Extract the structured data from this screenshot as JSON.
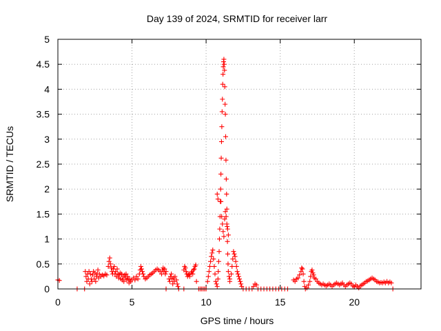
{
  "chart_data": {
    "type": "scatter",
    "title": "Day 139 of 2024, SRMTID for receiver larr",
    "xlabel": "GPS time / hours",
    "ylabel": "SRMTID / TECUs",
    "xlim": [
      0,
      24.5
    ],
    "ylim": [
      0,
      5
    ],
    "xticks": [
      0,
      5,
      10,
      15,
      20
    ],
    "xtick_labels": [
      "0",
      "5",
      "10",
      "15",
      "20"
    ],
    "yticks": [
      0,
      0.5,
      1,
      1.5,
      2,
      2.5,
      3,
      3.5,
      4,
      4.5,
      5
    ],
    "ytick_labels": [
      "0",
      "0.5",
      "1",
      "1.5",
      "2",
      "2.5",
      "3",
      "3.5",
      "4",
      "4.5",
      "5"
    ],
    "grid": true,
    "marker": "+",
    "color": "#ff0000",
    "series": [
      {
        "name": "SRMTID",
        "points": [
          [
            0.0,
            0.18
          ],
          [
            0.1,
            0.17
          ],
          [
            1.3,
            0.0
          ],
          [
            1.8,
            0.0
          ],
          [
            1.85,
            0.35
          ],
          [
            1.9,
            0.25
          ],
          [
            1.95,
            0.15
          ],
          [
            2.0,
            0.3
          ],
          [
            2.05,
            0.2
          ],
          [
            2.1,
            0.35
          ],
          [
            2.15,
            0.1
          ],
          [
            2.2,
            0.3
          ],
          [
            2.25,
            0.2
          ],
          [
            2.3,
            0.15
          ],
          [
            2.35,
            0.28
          ],
          [
            2.4,
            0.35
          ],
          [
            2.45,
            0.2
          ],
          [
            2.5,
            0.32
          ],
          [
            2.55,
            0.15
          ],
          [
            2.6,
            0.25
          ],
          [
            2.65,
            0.3
          ],
          [
            2.7,
            0.38
          ],
          [
            2.75,
            0.22
          ],
          [
            2.8,
            0.3
          ],
          [
            2.9,
            0.25
          ],
          [
            3.0,
            0.28
          ],
          [
            3.1,
            0.26
          ],
          [
            3.2,
            0.3
          ],
          [
            3.3,
            0.28
          ],
          [
            3.4,
            0.45
          ],
          [
            3.45,
            0.55
          ],
          [
            3.5,
            0.62
          ],
          [
            3.55,
            0.5
          ],
          [
            3.6,
            0.42
          ],
          [
            3.65,
            0.35
          ],
          [
            3.7,
            0.3
          ],
          [
            3.75,
            0.4
          ],
          [
            3.8,
            0.45
          ],
          [
            3.85,
            0.3
          ],
          [
            3.9,
            0.35
          ],
          [
            3.95,
            0.25
          ],
          [
            4.0,
            0.4
          ],
          [
            4.05,
            0.3
          ],
          [
            4.1,
            0.22
          ],
          [
            4.15,
            0.28
          ],
          [
            4.2,
            0.32
          ],
          [
            4.25,
            0.2
          ],
          [
            4.3,
            0.3
          ],
          [
            4.35,
            0.18
          ],
          [
            4.4,
            0.25
          ],
          [
            4.45,
            0.15
          ],
          [
            4.5,
            0.28
          ],
          [
            4.55,
            0.22
          ],
          [
            4.6,
            0.3
          ],
          [
            4.65,
            0.18
          ],
          [
            4.7,
            0.25
          ],
          [
            4.75,
            0.2
          ],
          [
            4.8,
            0.12
          ],
          [
            4.85,
            0.2
          ],
          [
            4.9,
            0.15
          ],
          [
            5.0,
            0.18
          ],
          [
            5.1,
            0.22
          ],
          [
            5.2,
            0.18
          ],
          [
            5.3,
            0.25
          ],
          [
            5.4,
            0.2
          ],
          [
            5.5,
            0.3
          ],
          [
            5.55,
            0.38
          ],
          [
            5.6,
            0.45
          ],
          [
            5.65,
            0.4
          ],
          [
            5.7,
            0.35
          ],
          [
            5.75,
            0.3
          ],
          [
            5.8,
            0.25
          ],
          [
            5.9,
            0.2
          ],
          [
            6.0,
            0.22
          ],
          [
            6.1,
            0.25
          ],
          [
            6.2,
            0.28
          ],
          [
            6.3,
            0.3
          ],
          [
            6.4,
            0.32
          ],
          [
            6.5,
            0.35
          ],
          [
            6.6,
            0.38
          ],
          [
            6.7,
            0.4
          ],
          [
            6.8,
            0.38
          ],
          [
            6.9,
            0.35
          ],
          [
            7.0,
            0.3
          ],
          [
            7.05,
            0.38
          ],
          [
            7.1,
            0.42
          ],
          [
            7.15,
            0.35
          ],
          [
            7.2,
            0.4
          ],
          [
            7.25,
            0.3
          ],
          [
            7.3,
            0.35
          ],
          [
            7.3,
            0.0
          ],
          [
            7.5,
            0.2
          ],
          [
            7.55,
            0.15
          ],
          [
            7.6,
            0.25
          ],
          [
            7.65,
            0.3
          ],
          [
            7.7,
            0.2
          ],
          [
            7.75,
            0.1
          ],
          [
            7.8,
            0.22
          ],
          [
            7.85,
            0.15
          ],
          [
            7.9,
            0.25
          ],
          [
            8.0,
            0.18
          ],
          [
            8.05,
            0.1
          ],
          [
            8.1,
            0.05
          ],
          [
            8.15,
            0.0
          ],
          [
            8.5,
            0.0
          ],
          [
            8.5,
            0.38
          ],
          [
            8.55,
            0.45
          ],
          [
            8.6,
            0.42
          ],
          [
            8.65,
            0.35
          ],
          [
            8.7,
            0.3
          ],
          [
            8.75,
            0.25
          ],
          [
            8.8,
            0.28
          ],
          [
            8.85,
            0.3
          ],
          [
            8.9,
            0.25
          ],
          [
            9.0,
            0.32
          ],
          [
            9.05,
            0.35
          ],
          [
            9.1,
            0.3
          ],
          [
            9.15,
            0.38
          ],
          [
            9.2,
            0.4
          ],
          [
            9.25,
            0.45
          ],
          [
            9.3,
            0.48
          ],
          [
            9.35,
            0.15
          ],
          [
            9.5,
            0.0
          ],
          [
            9.6,
            0.0
          ],
          [
            9.7,
            0.0
          ],
          [
            9.8,
            0.0
          ],
          [
            9.9,
            0.0
          ],
          [
            10.0,
            0.0
          ],
          [
            10.1,
            0.15
          ],
          [
            10.15,
            0.25
          ],
          [
            10.2,
            0.35
          ],
          [
            10.25,
            0.45
          ],
          [
            10.3,
            0.55
          ],
          [
            10.35,
            0.65
          ],
          [
            10.4,
            0.72
          ],
          [
            10.45,
            0.78
          ],
          [
            10.5,
            0.6
          ],
          [
            10.55,
            0.45
          ],
          [
            10.6,
            0.3
          ],
          [
            10.65,
            0.15
          ],
          [
            10.7,
            0.1
          ],
          [
            10.75,
            0.05
          ],
          [
            10.8,
            0.2
          ],
          [
            10.82,
            0.35
          ],
          [
            10.85,
            0.55
          ],
          [
            10.88,
            0.75
          ],
          [
            10.9,
            1.0
          ],
          [
            10.92,
            1.2
          ],
          [
            10.94,
            1.45
          ],
          [
            10.96,
            1.75
          ],
          [
            10.98,
            2.0
          ],
          [
            11.0,
            2.3
          ],
          [
            11.02,
            2.62
          ],
          [
            11.04,
            2.95
          ],
          [
            11.06,
            3.25
          ],
          [
            11.08,
            3.55
          ],
          [
            11.1,
            3.8
          ],
          [
            11.12,
            4.1
          ],
          [
            11.14,
            4.3
          ],
          [
            11.16,
            4.45
          ],
          [
            11.18,
            4.55
          ],
          [
            11.2,
            4.6
          ],
          [
            11.22,
            4.5
          ],
          [
            11.24,
            4.38
          ],
          [
            11.26,
            4.05
          ],
          [
            11.28,
            3.7
          ],
          [
            11.3,
            3.5
          ],
          [
            11.32,
            3.05
          ],
          [
            11.34,
            2.58
          ],
          [
            11.36,
            2.2
          ],
          [
            11.38,
            1.9
          ],
          [
            11.4,
            1.6
          ],
          [
            11.42,
            1.25
          ],
          [
            11.44,
            0.95
          ],
          [
            11.46,
            0.7
          ],
          [
            11.48,
            0.5
          ],
          [
            11.5,
            0.35
          ],
          [
            11.55,
            0.25
          ],
          [
            11.6,
            0.2
          ],
          [
            10.75,
            1.9
          ],
          [
            10.8,
            1.8
          ],
          [
            11.0,
            1.75
          ],
          [
            11.05,
            1.45
          ],
          [
            11.1,
            1.3
          ],
          [
            11.15,
            1.15
          ],
          [
            11.2,
            1.05
          ],
          [
            11.25,
            1.4
          ],
          [
            11.3,
            1.55
          ],
          [
            11.35,
            1.45
          ],
          [
            11.4,
            1.3
          ],
          [
            11.45,
            1.2
          ],
          [
            11.5,
            1.08
          ],
          [
            11.6,
            0.15
          ],
          [
            11.7,
            0.3
          ],
          [
            11.75,
            0.45
          ],
          [
            11.8,
            0.6
          ],
          [
            11.85,
            0.75
          ],
          [
            11.9,
            0.7
          ],
          [
            11.95,
            0.65
          ],
          [
            12.0,
            0.55
          ],
          [
            12.05,
            0.45
          ],
          [
            12.1,
            0.35
          ],
          [
            12.15,
            0.3
          ],
          [
            12.2,
            0.25
          ],
          [
            12.25,
            0.2
          ],
          [
            12.3,
            0.15
          ],
          [
            12.35,
            0.1
          ],
          [
            12.4,
            0.05
          ],
          [
            12.5,
            0.0
          ],
          [
            12.7,
            0.0
          ],
          [
            12.9,
            0.0
          ],
          [
            13.1,
            0.0
          ],
          [
            13.2,
            0.05
          ],
          [
            13.3,
            0.1
          ],
          [
            13.4,
            0.08
          ],
          [
            13.5,
            0.0
          ],
          [
            13.7,
            0.0
          ],
          [
            13.9,
            0.0
          ],
          [
            14.1,
            0.0
          ],
          [
            14.3,
            0.0
          ],
          [
            14.5,
            0.0
          ],
          [
            14.7,
            0.0
          ],
          [
            14.9,
            0.0
          ],
          [
            15.1,
            0.0
          ],
          [
            15.3,
            0.0
          ],
          [
            15.5,
            0.0
          ],
          [
            15.9,
            0.18
          ],
          [
            16.0,
            0.15
          ],
          [
            16.1,
            0.2
          ],
          [
            16.2,
            0.22
          ],
          [
            16.3,
            0.28
          ],
          [
            16.4,
            0.35
          ],
          [
            16.45,
            0.42
          ],
          [
            16.5,
            0.4
          ],
          [
            16.55,
            0.3
          ],
          [
            16.6,
            0.15
          ],
          [
            16.65,
            0.05
          ],
          [
            16.7,
            0.0
          ],
          [
            16.8,
            0.02
          ],
          [
            16.9,
            0.08
          ],
          [
            17.0,
            0.15
          ],
          [
            17.05,
            0.25
          ],
          [
            17.1,
            0.35
          ],
          [
            17.15,
            0.38
          ],
          [
            17.2,
            0.32
          ],
          [
            17.25,
            0.28
          ],
          [
            17.3,
            0.22
          ],
          [
            17.4,
            0.2
          ],
          [
            17.5,
            0.15
          ],
          [
            17.6,
            0.12
          ],
          [
            17.7,
            0.1
          ],
          [
            17.8,
            0.08
          ],
          [
            17.9,
            0.1
          ],
          [
            18.0,
            0.08
          ],
          [
            18.1,
            0.06
          ],
          [
            18.2,
            0.08
          ],
          [
            18.3,
            0.1
          ],
          [
            18.4,
            0.08
          ],
          [
            18.5,
            0.05
          ],
          [
            18.6,
            0.08
          ],
          [
            18.7,
            0.1
          ],
          [
            18.8,
            0.12
          ],
          [
            18.9,
            0.1
          ],
          [
            19.0,
            0.08
          ],
          [
            19.1,
            0.1
          ],
          [
            19.2,
            0.12
          ],
          [
            19.3,
            0.08
          ],
          [
            19.4,
            0.05
          ],
          [
            19.5,
            0.08
          ],
          [
            19.6,
            0.1
          ],
          [
            19.7,
            0.12
          ],
          [
            19.8,
            0.1
          ],
          [
            19.9,
            0.06
          ],
          [
            20.0,
            0.04
          ],
          [
            20.1,
            0.08
          ],
          [
            20.2,
            0.05
          ],
          [
            20.3,
            0.02
          ],
          [
            20.4,
            0.06
          ],
          [
            20.5,
            0.08
          ],
          [
            20.6,
            0.1
          ],
          [
            20.7,
            0.12
          ],
          [
            20.8,
            0.15
          ],
          [
            20.9,
            0.16
          ],
          [
            21.0,
            0.18
          ],
          [
            21.1,
            0.2
          ],
          [
            21.2,
            0.22
          ],
          [
            21.3,
            0.2
          ],
          [
            21.4,
            0.18
          ],
          [
            21.5,
            0.15
          ],
          [
            21.6,
            0.14
          ],
          [
            21.7,
            0.12
          ],
          [
            21.8,
            0.13
          ],
          [
            21.9,
            0.12
          ],
          [
            22.0,
            0.14
          ],
          [
            22.1,
            0.12
          ],
          [
            22.2,
            0.15
          ],
          [
            22.3,
            0.12
          ],
          [
            22.4,
            0.14
          ],
          [
            22.5,
            0.12
          ],
          [
            22.6,
            0.0
          ]
        ]
      }
    ]
  }
}
